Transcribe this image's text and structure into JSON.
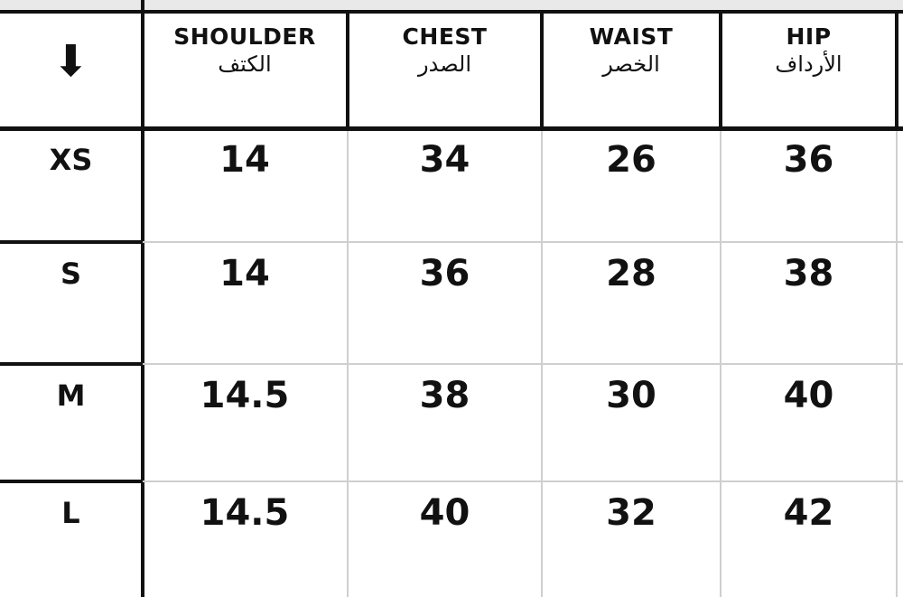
{
  "header": {
    "corner_icon": "down-arrow-icon",
    "columns": [
      {
        "en": "SHOULDER",
        "ar": "الكتف"
      },
      {
        "en": "CHEST",
        "ar": "الصدر"
      },
      {
        "en": "WAIST",
        "ar": "الخصر"
      },
      {
        "en": "HIP",
        "ar": "الأرداف"
      }
    ]
  },
  "rows": [
    {
      "size": "XS",
      "values": [
        "14",
        "34",
        "26",
        "36"
      ]
    },
    {
      "size": "S",
      "values": [
        "14",
        "36",
        "28",
        "38"
      ]
    },
    {
      "size": "M",
      "values": [
        "14.5",
        "38",
        "30",
        "40"
      ]
    },
    {
      "size": "L",
      "values": [
        "14.5",
        "40",
        "32",
        "42"
      ]
    }
  ]
}
